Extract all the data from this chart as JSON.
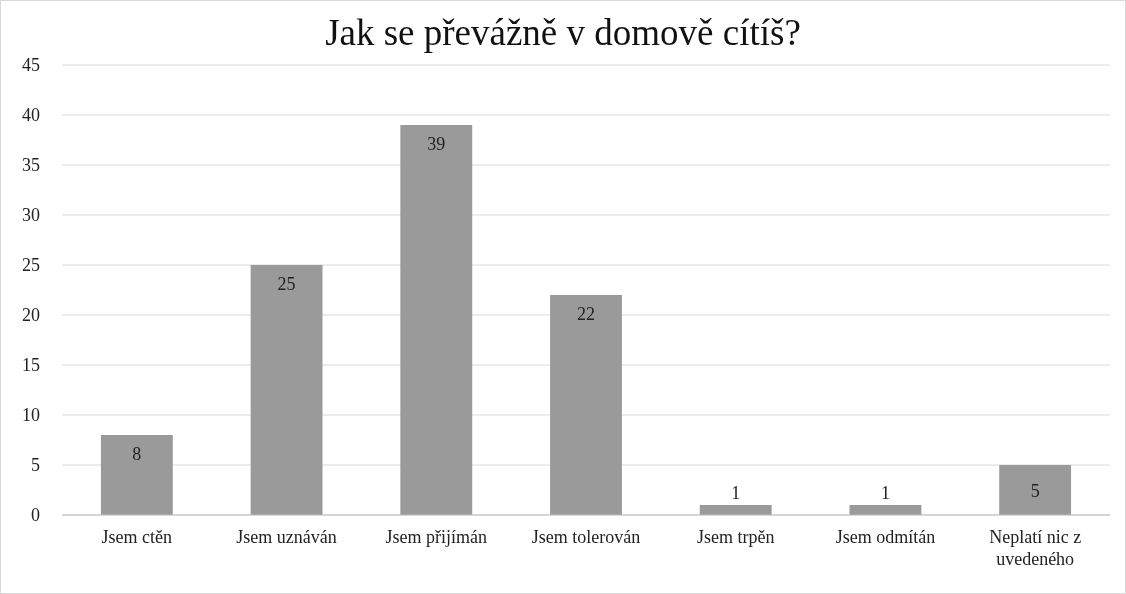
{
  "chart_data": {
    "type": "bar",
    "title": "Jak se převážně v domově cítíš?",
    "categories": [
      "Jsem ctěn",
      "Jsem uznáván",
      "Jsem přijímán",
      "Jsem tolerován",
      "Jsem trpěn",
      "Jsem odmítán",
      "Neplatí nic z uvedeného"
    ],
    "values": [
      8,
      25,
      39,
      22,
      1,
      1,
      5
    ],
    "color": "#9a9a9a",
    "ylim": [
      0,
      45
    ],
    "yticks": [
      0,
      5,
      10,
      15,
      20,
      25,
      30,
      35,
      40,
      45
    ],
    "grid": "y",
    "data_labels": true
  }
}
